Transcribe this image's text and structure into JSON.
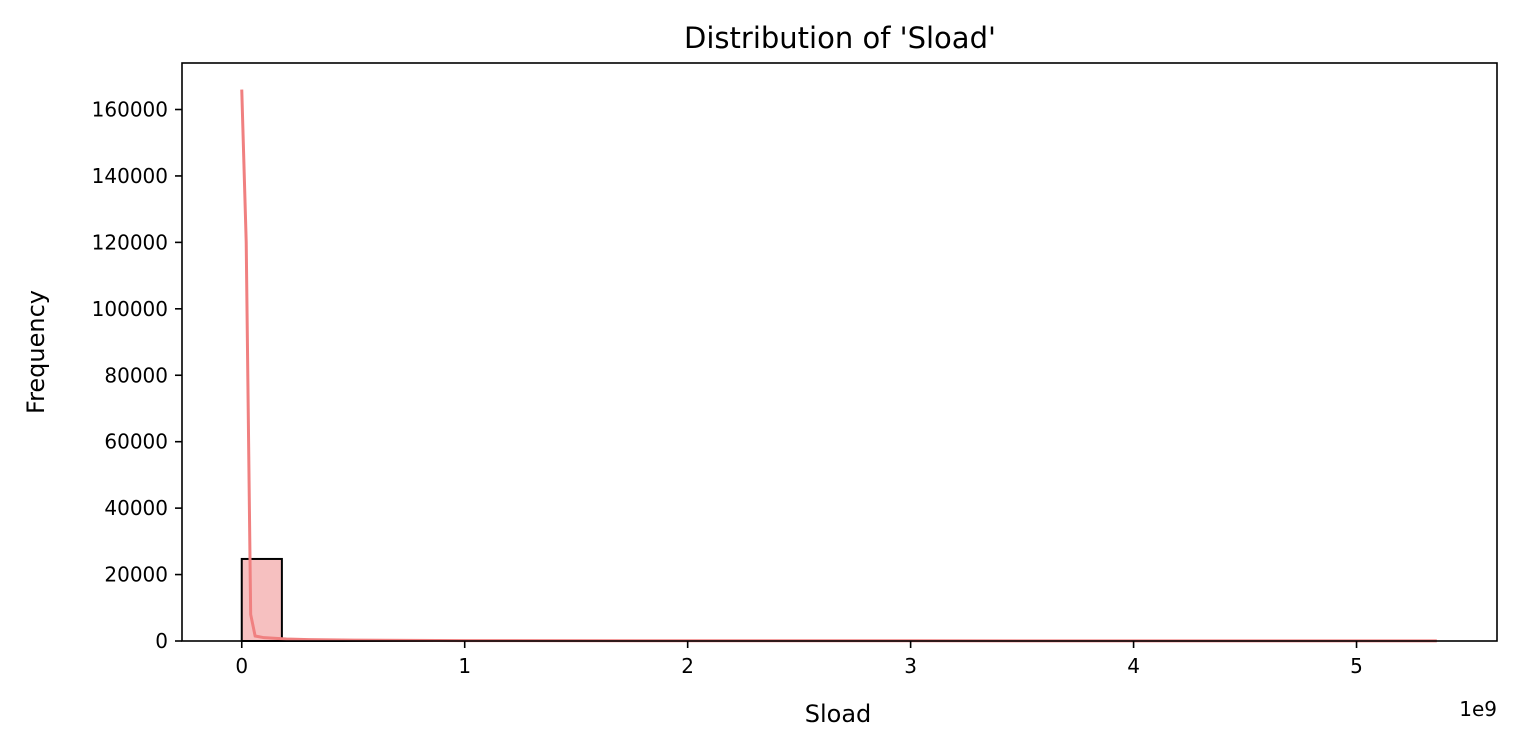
{
  "chart_data": {
    "type": "bar",
    "title": "Distribution of 'Sload'",
    "xlabel": "Sload",
    "ylabel": "Frequency",
    "x_offset_label": "1e9",
    "x_ticks": [
      0,
      1,
      2,
      3,
      4,
      5
    ],
    "x_tick_labels": [
      "0",
      "1",
      "2",
      "3",
      "4",
      "5"
    ],
    "y_ticks": [
      0,
      20000,
      40000,
      60000,
      80000,
      100000,
      120000,
      140000,
      160000
    ],
    "y_tick_labels": [
      "0",
      "20000",
      "40000",
      "60000",
      "80000",
      "100000",
      "120000",
      "140000",
      "160000"
    ],
    "xlim": [
      -0.268,
      5.63
    ],
    "ylim": [
      0,
      174000
    ],
    "grid": false,
    "bins": [
      {
        "x0": 0.0,
        "x1": 0.18,
        "count": 24700
      },
      {
        "x0": 0.18,
        "x1": 0.36,
        "count": 300
      },
      {
        "x0": 0.36,
        "x1": 0.54,
        "count": 150
      },
      {
        "x0": 0.54,
        "x1": 0.72,
        "count": 60
      },
      {
        "x0": 0.72,
        "x1": 0.9,
        "count": 20
      },
      {
        "x0": 0.9,
        "x1": 1.08,
        "count": 10
      }
    ],
    "kde": {
      "x": [
        0.0,
        0.02,
        0.04,
        0.06,
        0.1,
        0.2,
        0.3,
        0.5,
        1.0,
        2.0,
        3.0,
        4.0,
        5.36
      ],
      "y": [
        166000,
        120000,
        8000,
        1500,
        1000,
        600,
        400,
        250,
        120,
        80,
        60,
        50,
        40
      ]
    },
    "colors": {
      "bar_fill": "#f6c0c0",
      "bar_edge": "#000000",
      "kde_line": "#f08080"
    }
  }
}
